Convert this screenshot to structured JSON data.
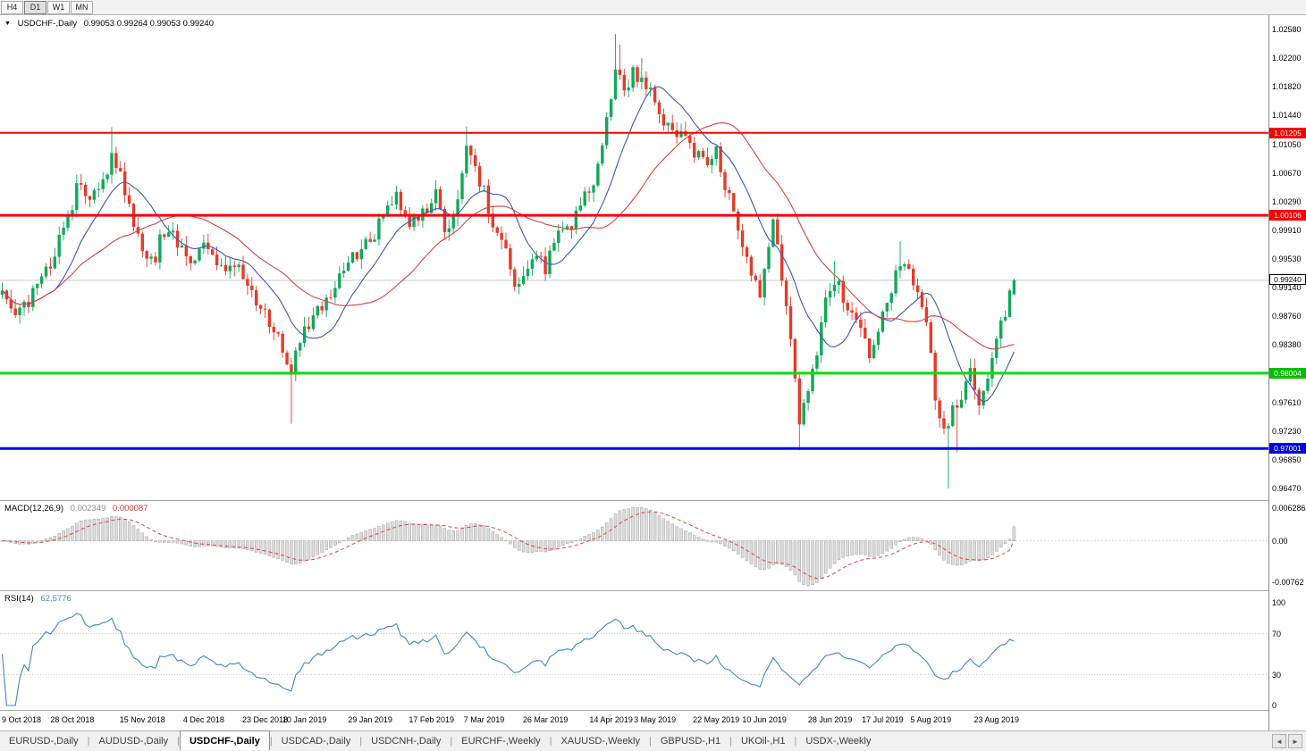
{
  "toolbar": {
    "timeframes": [
      {
        "label": "H4",
        "active": false
      },
      {
        "label": "D1",
        "active": true
      },
      {
        "label": "W1",
        "active": false
      },
      {
        "label": "MN",
        "active": false
      }
    ]
  },
  "chart": {
    "dropdown_icon": "▼",
    "symbol_title": "USDCHF-,Daily",
    "ohlc_line": "0.99053 0.99264 0.99053 0.99240"
  },
  "indicators": {
    "macd": {
      "label": "MACD(12,26,9)",
      "value_main": "0.002349",
      "value_signal": "0.000087",
      "axis_labels": [
        "0.006286",
        "0.00",
        "-0.00762"
      ]
    },
    "rsi": {
      "label": "RSI(14)",
      "value": "62.5776",
      "axis_labels": [
        "100",
        "70",
        "30",
        "0"
      ],
      "levels": [
        70,
        30
      ]
    }
  },
  "tabbar": {
    "separator": "|",
    "arrow_left": "◄",
    "arrow_right": "►",
    "tabs": [
      {
        "label": "EURUSD-,Daily",
        "active": false
      },
      {
        "label": "AUDUSD-,Daily",
        "active": false
      },
      {
        "label": "USDCHF-,Daily",
        "active": true
      },
      {
        "label": "USDCAD-,Daily",
        "active": false
      },
      {
        "label": "USDCNH-,Daily",
        "active": false
      },
      {
        "label": "EURCHF-,Weekly",
        "active": false
      },
      {
        "label": "XAUUSD-,Weekly",
        "active": false
      },
      {
        "label": "GBPUSD-,H1",
        "active": false
      },
      {
        "label": "UKOil-,H1",
        "active": false
      },
      {
        "label": "USDX-,Weekly",
        "active": false
      }
    ]
  },
  "colors": {
    "bull": "#0fa958",
    "bear": "#e63928",
    "ma_fast": "#3a55c0",
    "ma_slow": "#d4443e",
    "macd_signal": "#d8453e",
    "rsi_line": "#4186c6",
    "bid_line": "#c9c9c9"
  },
  "chart_data": {
    "type": "candlestick",
    "symbol": "USDCHF-",
    "timeframe": "Daily",
    "open": "0.99053",
    "high": "0.99264",
    "low": "0.99053",
    "close": "0.99240",
    "candle_count": 232,
    "noise_seed": 987654321,
    "y_axis": {
      "min": 0.9632,
      "max": 1.0277,
      "ticks": [
        "1.02580",
        "1.02200",
        "1.01820",
        "1.01440",
        "1.01050",
        "1.00670",
        "1.00290",
        "0.99910",
        "0.99530",
        "0.99140",
        "0.98760",
        "0.98380",
        "0.97610",
        "0.97230",
        "0.96850",
        "0.96470"
      ]
    },
    "x_axis": [
      {
        "label": "9 Oct 2018",
        "i": 0
      },
      {
        "label": "28 Oct 2018",
        "i": 16
      },
      {
        "label": "15 Nov 2018",
        "i": 32
      },
      {
        "label": "4 Dec 2018",
        "i": 46
      },
      {
        "label": "23 Dec 2018",
        "i": 60
      },
      {
        "label": "10 Jan 2019",
        "i": 69
      },
      {
        "label": "29 Jan 2019",
        "i": 84
      },
      {
        "label": "17 Feb 2019",
        "i": 98
      },
      {
        "label": "7 Mar 2019",
        "i": 110
      },
      {
        "label": "26 Mar 2019",
        "i": 124
      },
      {
        "label": "14 Apr 2019",
        "i": 139
      },
      {
        "label": "3 May 2019",
        "i": 149
      },
      {
        "label": "22 May 2019",
        "i": 163
      },
      {
        "label": "10 Jun 2019",
        "i": 174
      },
      {
        "label": "28 Jun 2019",
        "i": 189
      },
      {
        "label": "17 Jul 2019",
        "i": 201
      },
      {
        "label": "5 Aug 2019",
        "i": 212
      },
      {
        "label": "23 Aug 2019",
        "i": 227
      }
    ],
    "price_path_anchors": [
      [
        0,
        0.9905
      ],
      [
        3,
        0.9878
      ],
      [
        6,
        0.9895
      ],
      [
        9,
        0.9925
      ],
      [
        12,
        0.9962
      ],
      [
        15,
        1.0012
      ],
      [
        18,
        1.0058
      ],
      [
        20,
        1.0028
      ],
      [
        23,
        1.0052
      ],
      [
        25,
        1.0085
      ],
      [
        27,
        1.006
      ],
      [
        29,
        1.002
      ],
      [
        31,
        0.9978
      ],
      [
        33,
        0.9942
      ],
      [
        35,
        0.9958
      ],
      [
        37,
        0.9992
      ],
      [
        40,
        0.9975
      ],
      [
        43,
        0.995
      ],
      [
        46,
        0.9972
      ],
      [
        49,
        0.9935
      ],
      [
        52,
        0.995
      ],
      [
        55,
        0.9928
      ],
      [
        58,
        0.9898
      ],
      [
        61,
        0.9868
      ],
      [
        64,
        0.9838
      ],
      [
        66,
        0.98
      ],
      [
        68,
        0.9845
      ],
      [
        71,
        0.9872
      ],
      [
        74,
        0.9902
      ],
      [
        78,
        0.9938
      ],
      [
        81,
        0.9958
      ],
      [
        84,
        0.9978
      ],
      [
        87,
        1.0008
      ],
      [
        90,
        1.0038
      ],
      [
        93,
        0.9995
      ],
      [
        96,
        1.0012
      ],
      [
        99,
        1.0038
      ],
      [
        101,
        0.9992
      ],
      [
        103,
        1.0008
      ],
      [
        105,
        1.0072
      ],
      [
        106,
        1.0098
      ],
      [
        108,
        1.0075
      ],
      [
        110,
        1.004
      ],
      [
        113,
        0.9988
      ],
      [
        116,
        0.994
      ],
      [
        118,
        0.9912
      ],
      [
        121,
        0.9962
      ],
      [
        124,
        0.9942
      ],
      [
        127,
        0.9985
      ],
      [
        130,
        1.0002
      ],
      [
        133,
        1.0032
      ],
      [
        136,
        1.0072
      ],
      [
        138,
        1.0135
      ],
      [
        140,
        1.0215
      ],
      [
        142,
        1.0185
      ],
      [
        144,
        1.0198
      ],
      [
        146,
        1.0192
      ],
      [
        148,
        1.0178
      ],
      [
        150,
        1.015
      ],
      [
        152,
        1.0132
      ],
      [
        155,
        1.012
      ],
      [
        158,
        1.0088
      ],
      [
        161,
        1.008
      ],
      [
        163,
        1.0098
      ],
      [
        165,
        1.0055
      ],
      [
        168,
        0.9992
      ],
      [
        171,
        0.9938
      ],
      [
        173,
        0.9902
      ],
      [
        175,
        0.9958
      ],
      [
        176,
        0.9995
      ],
      [
        178,
        0.9932
      ],
      [
        180,
        0.9852
      ],
      [
        182,
        0.9742
      ],
      [
        184,
        0.9772
      ],
      [
        186,
        0.9822
      ],
      [
        188,
        0.9898
      ],
      [
        190,
        0.9928
      ],
      [
        193,
        0.9888
      ],
      [
        196,
        0.9862
      ],
      [
        198,
        0.9825
      ],
      [
        201,
        0.9872
      ],
      [
        204,
        0.9928
      ],
      [
        206,
        0.9948
      ],
      [
        209,
        0.9902
      ],
      [
        211,
        0.9875
      ],
      [
        213,
        0.9768
      ],
      [
        215,
        0.9718
      ],
      [
        217,
        0.9752
      ],
      [
        219,
        0.9772
      ],
      [
        221,
        0.9798
      ],
      [
        223,
        0.9762
      ],
      [
        225,
        0.9802
      ],
      [
        227,
        0.9842
      ],
      [
        229,
        0.9885
      ],
      [
        231,
        0.9924
      ]
    ],
    "wick_events": [
      {
        "i": 25,
        "high": 1.0128
      },
      {
        "i": 66,
        "low": 0.9733
      },
      {
        "i": 106,
        "high": 1.0129
      },
      {
        "i": 140,
        "high": 1.0252
      },
      {
        "i": 141,
        "high": 1.0238
      },
      {
        "i": 146,
        "high": 1.022
      },
      {
        "i": 176,
        "high": 1.0002
      },
      {
        "i": 182,
        "low": 0.9698
      },
      {
        "i": 190,
        "high": 0.995
      },
      {
        "i": 205,
        "high": 0.9976
      },
      {
        "i": 216,
        "low": 0.9647
      },
      {
        "i": 218,
        "low": 0.9695
      }
    ],
    "last_candle": {
      "open": 0.99053,
      "high": 0.99264,
      "low": 0.99053,
      "close": 0.9924
    },
    "levels": [
      {
        "label": "1.01205",
        "value": 1.01205,
        "line_color": "#ff0000",
        "badge_color": "#f40000",
        "thickness": 2
      },
      {
        "label": "1.00106",
        "value": 1.00106,
        "line_color": "#ff0000",
        "badge_color": "#f40000",
        "thickness": 3
      },
      {
        "label": "0.98004",
        "value": 0.98004,
        "line_color": "#00dc00",
        "badge_color": "#00bf00",
        "thickness": 3
      },
      {
        "label": "0.97001",
        "value": 0.97001,
        "line_color": "#0000f5",
        "badge_color": "#0000e0",
        "thickness": 3
      }
    ],
    "bid": {
      "label": "0.99240",
      "value": 0.9924
    }
  }
}
